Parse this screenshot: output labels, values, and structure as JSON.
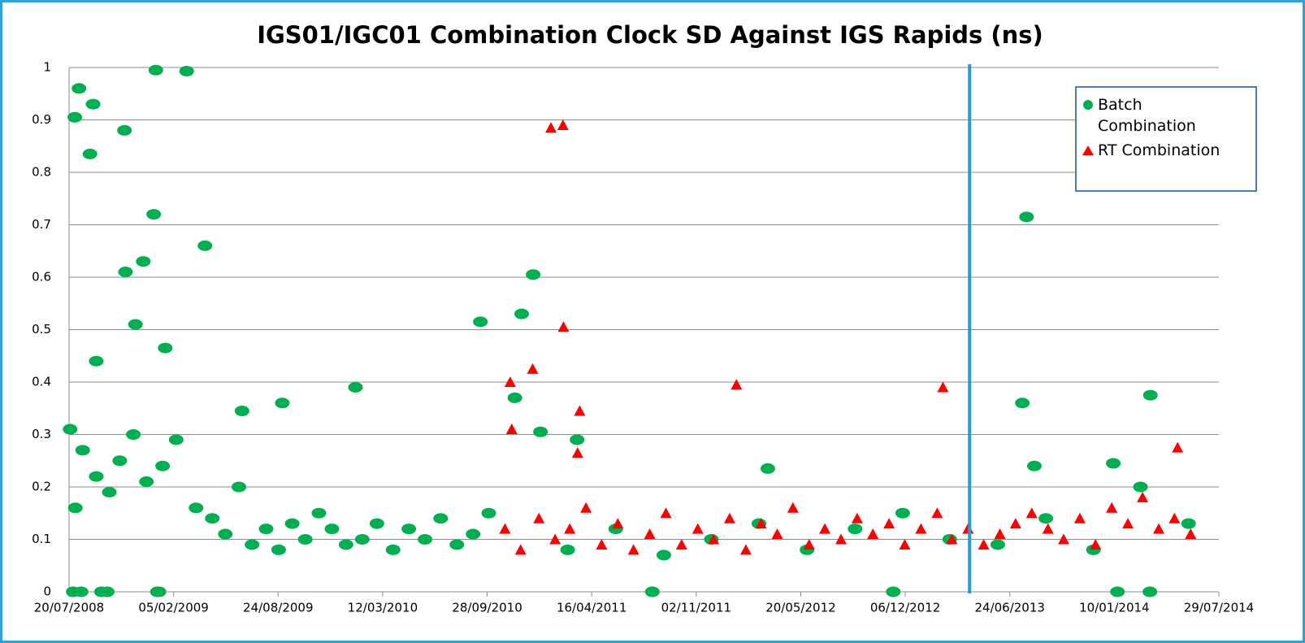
{
  "chart_data": {
    "type": "scatter",
    "title": "IGS01/IGC01 Combination Clock SD Against IGS Rapids (ns)",
    "xlim": [
      "2008-07-20",
      "2014-07-29"
    ],
    "xticks": [
      {
        "value": "2008-07-20",
        "label": "20/07/2008"
      },
      {
        "value": "2009-02-05",
        "label": "05/02/2009"
      },
      {
        "value": "2009-08-24",
        "label": "24/08/2009"
      },
      {
        "value": "2010-03-12",
        "label": "12/03/2010"
      },
      {
        "value": "2010-09-28",
        "label": "28/09/2010"
      },
      {
        "value": "2011-04-16",
        "label": "16/04/2011"
      },
      {
        "value": "2011-11-02",
        "label": "02/11/2011"
      },
      {
        "value": "2012-05-20",
        "label": "20/05/2012"
      },
      {
        "value": "2012-12-06",
        "label": "06/12/2012"
      },
      {
        "value": "2013-06-24",
        "label": "24/06/2013"
      },
      {
        "value": "2014-01-10",
        "label": "10/01/2014"
      },
      {
        "value": "2014-07-29",
        "label": "29/07/2014"
      }
    ],
    "ylim": [
      0,
      1
    ],
    "yticks": [
      0,
      0.1,
      0.2,
      0.3,
      0.4,
      0.5,
      0.6,
      0.7,
      0.8,
      0.9,
      1
    ],
    "grid": true,
    "legend": "top-right",
    "vline": {
      "x": "2013-04-08",
      "color": "#1ea0dc"
    },
    "series": [
      {
        "name": "Batch Combination",
        "color": "#00b050",
        "marker": "circle",
        "x": [
          "2008-07-22",
          "2008-07-31",
          "2008-08-08",
          "2008-08-01",
          "2008-08-29",
          "2008-09-04",
          "2008-09-10",
          "2008-07-28",
          "2008-08-12",
          "2008-09-20",
          "2008-10-01",
          "2008-11-03",
          "2008-11-05",
          "2008-11-24",
          "2008-12-09",
          "2008-12-29",
          "2009-01-02",
          "2009-03-02",
          "2009-01-05",
          "2009-01-08",
          "2009-01-20",
          "2009-04-06",
          "2009-06-16",
          "2009-09-01",
          "2010-01-19",
          "2010-09-15",
          "2010-12-03",
          "2010-12-25",
          "2010-11-20",
          "2011-01-08",
          "2011-03-19",
          "2011-08-10",
          "2012-11-13",
          "2013-07-26",
          "2013-07-18",
          "2013-08-10",
          "2014-01-08",
          "2014-01-16",
          "2014-03-19",
          "2014-03-20",
          "2012-03-18",
          "2008-08-15",
          "2008-09-10",
          "2008-10-05",
          "2008-10-25",
          "2008-11-20",
          "2008-12-15",
          "2009-01-15",
          "2009-02-10",
          "2009-03-20",
          "2009-04-20",
          "2009-05-15",
          "2009-06-10",
          "2009-07-05",
          "2009-08-01",
          "2009-08-25",
          "2009-09-20",
          "2009-10-15",
          "2009-11-10",
          "2009-12-05",
          "2010-01-01",
          "2010-02-01",
          "2010-03-01",
          "2010-04-01",
          "2010-05-01",
          "2010-06-01",
          "2010-07-01",
          "2010-08-01",
          "2010-09-01",
          "2010-10-01",
          "2011-03-01",
          "2011-06-01",
          "2011-09-01",
          "2011-12-01",
          "2012-03-01",
          "2012-06-01",
          "2012-09-01",
          "2012-12-01",
          "2013-03-01",
          "2013-06-01",
          "2013-09-01",
          "2013-12-01",
          "2014-03-01",
          "2014-06-01"
        ],
        "values": [
          0.31,
          0.905,
          0.96,
          0.16,
          0.835,
          0.93,
          0.44,
          0,
          0,
          0,
          0,
          0.88,
          0.61,
          0.51,
          0.63,
          0.72,
          0.995,
          0.993,
          0,
          0,
          0.465,
          0.66,
          0.345,
          0.36,
          0.39,
          0.515,
          0.53,
          0.605,
          0.37,
          0.305,
          0.29,
          0,
          0,
          0.715,
          0.36,
          0.24,
          0.245,
          0,
          0,
          0.375,
          0.235,
          0.27,
          0.22,
          0.19,
          0.25,
          0.3,
          0.21,
          0.24,
          0.29,
          0.16,
          0.14,
          0.11,
          0.2,
          0.09,
          0.12,
          0.08,
          0.13,
          0.1,
          0.15,
          0.12,
          0.09,
          0.1,
          0.13,
          0.08,
          0.12,
          0.1,
          0.14,
          0.09,
          0.11,
          0.15,
          0.08,
          0.12,
          0.07,
          0.1,
          0.13,
          0.08,
          0.12,
          0.15,
          0.1,
          0.09,
          0.14,
          0.08,
          0.2,
          0.13
        ]
      },
      {
        "name": "RT Combination",
        "color": "#ff0000",
        "marker": "triangle",
        "x": [
          "2010-11-11",
          "2010-11-14",
          "2011-01-28",
          "2011-02-20",
          "2011-02-21",
          "2010-12-24",
          "2011-03-24",
          "2011-03-20",
          "2012-01-18",
          "2013-02-16",
          "2014-05-11",
          "2010-11-01",
          "2010-12-01",
          "2011-01-05",
          "2011-02-05",
          "2011-03-05",
          "2011-04-05",
          "2011-05-05",
          "2011-06-05",
          "2011-07-05",
          "2011-08-05",
          "2011-09-05",
          "2011-10-05",
          "2011-11-05",
          "2011-12-05",
          "2012-01-05",
          "2012-02-05",
          "2012-03-05",
          "2012-04-05",
          "2012-05-05",
          "2012-06-05",
          "2012-07-05",
          "2012-08-05",
          "2012-09-05",
          "2012-10-05",
          "2012-11-05",
          "2012-12-05",
          "2013-01-05",
          "2013-02-05",
          "2013-03-05",
          "2013-04-05",
          "2013-05-05",
          "2013-06-05",
          "2013-07-05",
          "2013-08-05",
          "2013-09-05",
          "2013-10-05",
          "2013-11-05",
          "2013-12-05",
          "2014-01-05",
          "2014-02-05",
          "2014-03-05",
          "2014-04-05",
          "2014-05-05",
          "2014-06-05"
        ],
        "values": [
          0.4,
          0.31,
          0.885,
          0.89,
          0.505,
          0.425,
          0.345,
          0.265,
          0.395,
          0.39,
          0.275,
          0.12,
          0.08,
          0.14,
          0.1,
          0.12,
          0.16,
          0.09,
          0.13,
          0.08,
          0.11,
          0.15,
          0.09,
          0.12,
          0.1,
          0.14,
          0.08,
          0.13,
          0.11,
          0.16,
          0.09,
          0.12,
          0.1,
          0.14,
          0.11,
          0.13,
          0.09,
          0.12,
          0.15,
          0.1,
          0.12,
          0.09,
          0.11,
          0.13,
          0.15,
          0.12,
          0.1,
          0.14,
          0.09,
          0.16,
          0.13,
          0.18,
          0.12,
          0.14,
          0.11
        ]
      }
    ]
  }
}
